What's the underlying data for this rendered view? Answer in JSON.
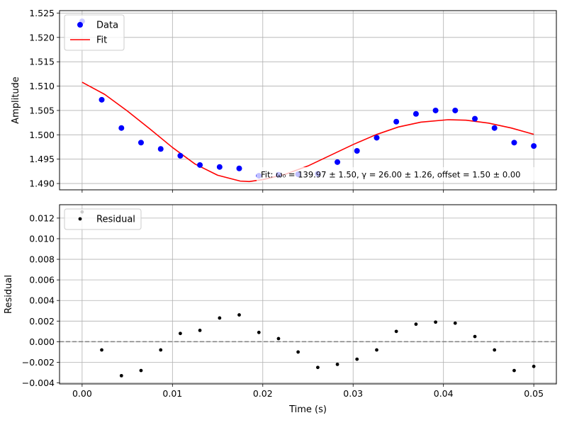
{
  "chart_data": [
    {
      "type": "scatter",
      "xlabel": "",
      "ylabel": "Amplitude",
      "xlim": [
        -0.0025,
        0.0525
      ],
      "ylim": [
        1.4887,
        1.5255
      ],
      "x_ticks": [
        0.0,
        0.01,
        0.02,
        0.03,
        0.04,
        0.05
      ],
      "y_ticks": [
        1.49,
        1.495,
        1.5,
        1.505,
        1.51,
        1.515,
        1.52,
        1.525
      ],
      "y_tick_labels": [
        "1.490",
        "1.495",
        "1.500",
        "1.505",
        "1.510",
        "1.515",
        "1.520",
        "1.525"
      ],
      "grid": true,
      "legend_position": "top-left",
      "series": [
        {
          "name": "Data",
          "kind": "scatter",
          "color": "#0000ff",
          "x": [
            0.0,
            0.00217,
            0.00435,
            0.00652,
            0.0087,
            0.01087,
            0.01304,
            0.01522,
            0.01739,
            0.01957,
            0.02174,
            0.02391,
            0.02609,
            0.02826,
            0.03043,
            0.03261,
            0.03478,
            0.03696,
            0.03913,
            0.0413,
            0.04348,
            0.04565,
            0.04783,
            0.05
          ],
          "y": [
            1.5233,
            1.5072,
            1.5014,
            1.4984,
            1.4971,
            1.4957,
            1.4938,
            1.4934,
            1.4931,
            1.4916,
            1.4918,
            1.4919,
            1.492,
            1.4944,
            1.4967,
            1.4994,
            1.5027,
            1.5043,
            1.505,
            1.505,
            1.5033,
            1.5014,
            1.4984,
            1.4977
          ]
        },
        {
          "name": "Fit",
          "kind": "line",
          "color": "#ff0000",
          "x": [
            0.0,
            0.0025,
            0.005,
            0.0075,
            0.01,
            0.0125,
            0.015,
            0.0175,
            0.0185,
            0.02,
            0.0225,
            0.025,
            0.0275,
            0.03,
            0.0325,
            0.035,
            0.0375,
            0.0405,
            0.0425,
            0.045,
            0.0475,
            0.05
          ],
          "y": [
            1.5108,
            1.5083,
            1.5049,
            1.5012,
            1.4974,
            1.494,
            1.4917,
            1.4905,
            1.4904,
            1.4908,
            1.4919,
            1.4936,
            1.4958,
            1.498,
            1.5,
            1.5016,
            1.5026,
            1.5031,
            1.503,
            1.5024,
            1.5014,
            1.5001
          ]
        }
      ],
      "annotation": "Fit: ω₀ = 139.97 ± 1.50, γ = 26.00 ± 1.26, offset = 1.50 ± 0.00"
    },
    {
      "type": "scatter",
      "xlabel": "Time (s)",
      "ylabel": "Residual",
      "xlim": [
        -0.0025,
        0.0525
      ],
      "ylim": [
        -0.0041,
        0.0133
      ],
      "x_ticks": [
        0.0,
        0.01,
        0.02,
        0.03,
        0.04,
        0.05
      ],
      "x_tick_labels": [
        "0.00",
        "0.01",
        "0.02",
        "0.03",
        "0.04",
        "0.05"
      ],
      "y_ticks": [
        -0.004,
        -0.002,
        0.0,
        0.002,
        0.004,
        0.006,
        0.008,
        0.01,
        0.012
      ],
      "y_tick_labels": [
        "−0.004",
        "−0.002",
        "0.000",
        "0.002",
        "0.004",
        "0.006",
        "0.008",
        "0.010",
        "0.012"
      ],
      "grid": true,
      "legend_position": "top-left",
      "zero_line": {
        "y": 0.0,
        "style": "dashed",
        "color": "#808080"
      },
      "series": [
        {
          "name": "Residual",
          "kind": "scatter",
          "color": "#000000",
          "x": [
            0.0,
            0.00217,
            0.00435,
            0.00652,
            0.0087,
            0.01087,
            0.01304,
            0.01522,
            0.01739,
            0.01957,
            0.02174,
            0.02391,
            0.02609,
            0.02826,
            0.03043,
            0.03261,
            0.03478,
            0.03696,
            0.03913,
            0.0413,
            0.04348,
            0.04565,
            0.04783,
            0.05
          ],
          "y": [
            0.0126,
            -0.0008,
            -0.0033,
            -0.0028,
            -0.0008,
            0.0008,
            0.0011,
            0.0023,
            0.0026,
            0.0009,
            0.0003,
            -0.001,
            -0.0025,
            -0.0022,
            -0.0017,
            -0.0008,
            0.001,
            0.0017,
            0.0019,
            0.0018,
            0.0005,
            -0.0008,
            -0.0028,
            -0.0024
          ]
        }
      ]
    }
  ]
}
